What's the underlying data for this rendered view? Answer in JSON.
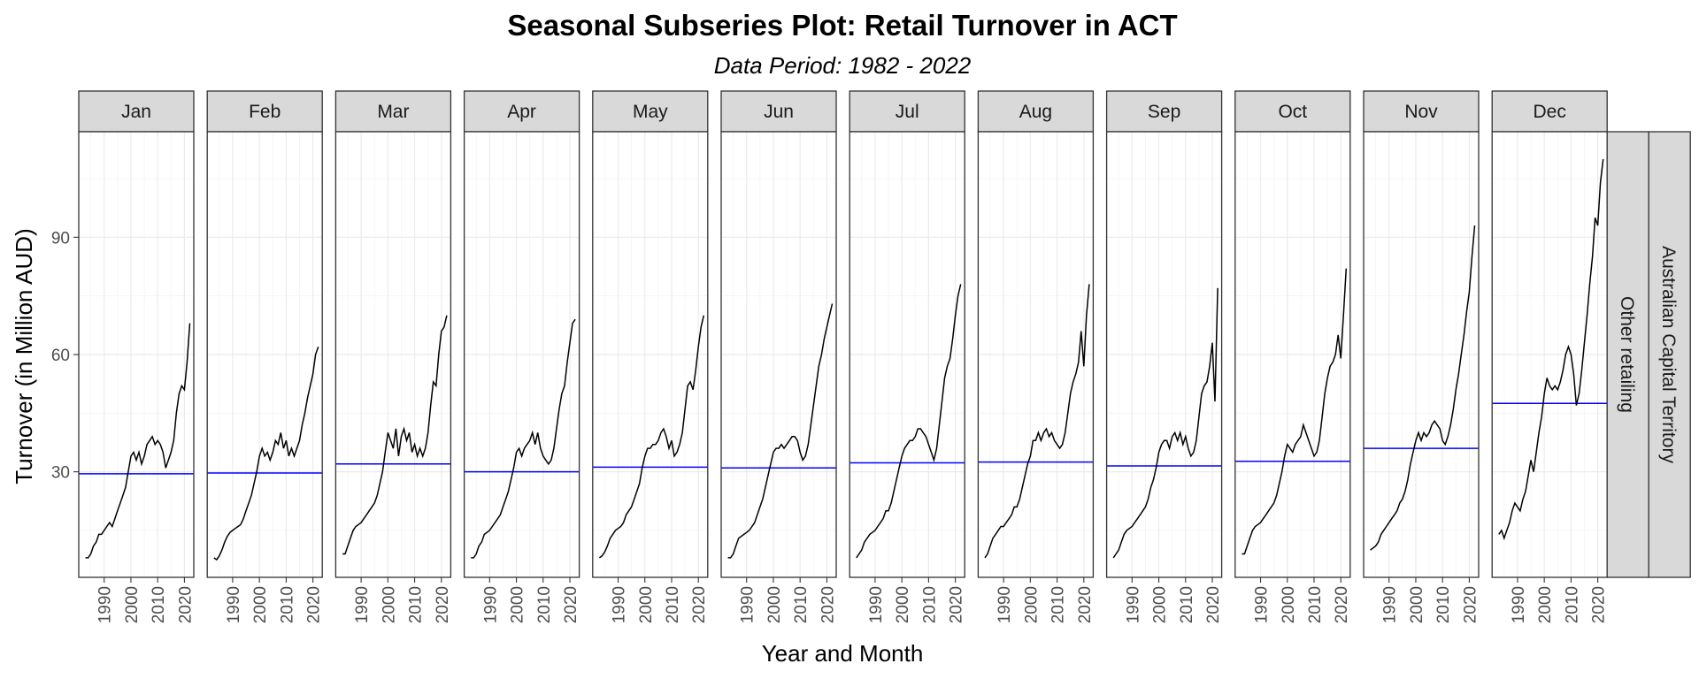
{
  "chart_data": {
    "type": "line",
    "title": "Seasonal Subseries Plot: Retail Turnover in ACT",
    "subtitle": "Data Period: 1982 - 2022",
    "xlabel": "Year and Month",
    "ylabel": "Turnover (in Million AUD)",
    "x_ticks": [
      1990,
      2000,
      2010,
      2020
    ],
    "y_ticks": [
      30,
      60,
      90
    ],
    "xlim": [
      1980.5,
      2023.5
    ],
    "ylim": [
      3,
      117
    ],
    "grid": true,
    "facet_row_labels": [
      "Other retailing",
      "Australian Capital Territory"
    ],
    "line_color": "#000000",
    "mean_line_color": "#0000ff",
    "panels": [
      {
        "month": "Jan",
        "mean": 29.5,
        "x": [
          1983,
          1984,
          1985,
          1986,
          1987,
          1988,
          1989,
          1990,
          1991,
          1992,
          1993,
          1994,
          1995,
          1996,
          1997,
          1998,
          1999,
          2000,
          2001,
          2002,
          2003,
          2004,
          2005,
          2006,
          2007,
          2008,
          2009,
          2010,
          2011,
          2012,
          2013,
          2014,
          2015,
          2016,
          2017,
          2018,
          2019,
          2020,
          2021,
          2022
        ],
        "y": [
          8,
          8,
          9,
          11,
          12,
          14,
          14,
          15,
          16,
          17,
          16,
          18,
          20,
          22,
          24,
          26,
          30,
          34,
          35,
          33,
          35,
          32,
          34,
          37,
          38,
          39,
          37,
          38,
          37,
          35,
          31,
          33,
          35,
          38,
          45,
          50,
          52,
          51,
          58,
          68
        ]
      },
      {
        "month": "Feb",
        "mean": 29.7,
        "x": [
          1983,
          1984,
          1985,
          1986,
          1987,
          1988,
          1989,
          1990,
          1991,
          1992,
          1993,
          1994,
          1995,
          1996,
          1997,
          1998,
          1999,
          2000,
          2001,
          2002,
          2003,
          2004,
          2005,
          2006,
          2007,
          2008,
          2009,
          2010,
          2011,
          2012,
          2013,
          2014,
          2015,
          2016,
          2017,
          2018,
          2019,
          2020,
          2021,
          2022
        ],
        "y": [
          8,
          7.5,
          8.5,
          10,
          12,
          13.5,
          14.5,
          15,
          15.5,
          16,
          16.5,
          18,
          20,
          22,
          24,
          27,
          30,
          34,
          36,
          34,
          35,
          33,
          35,
          38,
          37,
          40,
          36,
          38,
          34,
          36,
          34,
          36,
          38,
          42,
          45,
          49,
          52,
          55,
          60,
          62
        ]
      },
      {
        "month": "Mar",
        "mean": 32.0,
        "x": [
          1983,
          1984,
          1985,
          1986,
          1987,
          1988,
          1989,
          1990,
          1991,
          1992,
          1993,
          1994,
          1995,
          1996,
          1997,
          1998,
          1999,
          2000,
          2001,
          2002,
          2003,
          2004,
          2005,
          2006,
          2007,
          2008,
          2009,
          2010,
          2011,
          2012,
          2013,
          2014,
          2015,
          2016,
          2017,
          2018,
          2019,
          2020,
          2021,
          2022
        ],
        "y": [
          9,
          9,
          11,
          13,
          15,
          16,
          16.5,
          17,
          18,
          19,
          20,
          21,
          22,
          24,
          27,
          30,
          35,
          40,
          38,
          36,
          41,
          34,
          39,
          41,
          38,
          40,
          35,
          37,
          34,
          36,
          34,
          36,
          40,
          47,
          53,
          52,
          60,
          66,
          67,
          70
        ]
      },
      {
        "month": "Apr",
        "mean": 30.0,
        "x": [
          1983,
          1984,
          1985,
          1986,
          1987,
          1988,
          1989,
          1990,
          1991,
          1992,
          1993,
          1994,
          1995,
          1996,
          1997,
          1998,
          1999,
          2000,
          2001,
          2002,
          2003,
          2004,
          2005,
          2006,
          2007,
          2008,
          2009,
          2010,
          2011,
          2012,
          2013,
          2014,
          2015,
          2016,
          2017,
          2018,
          2019,
          2020,
          2021,
          2022
        ],
        "y": [
          8,
          8,
          9,
          11,
          12,
          14,
          14.5,
          15,
          16,
          17,
          18,
          19,
          21,
          23,
          25,
          28,
          31,
          35,
          36,
          34,
          36,
          37,
          38,
          40,
          37,
          40,
          36,
          34,
          33,
          32,
          33,
          36,
          41,
          46,
          50,
          52,
          58,
          63,
          68,
          69
        ]
      },
      {
        "month": "May",
        "mean": 31.2,
        "x": [
          1983,
          1984,
          1985,
          1986,
          1987,
          1988,
          1989,
          1990,
          1991,
          1992,
          1993,
          1994,
          1995,
          1996,
          1997,
          1998,
          1999,
          2000,
          2001,
          2002,
          2003,
          2004,
          2005,
          2006,
          2007,
          2008,
          2009,
          2010,
          2011,
          2012,
          2013,
          2014,
          2015,
          2016,
          2017,
          2018,
          2019,
          2020,
          2021,
          2022
        ],
        "y": [
          8,
          8.5,
          9.5,
          11,
          13,
          14,
          15,
          15.5,
          16,
          17,
          19,
          20,
          21,
          23,
          25,
          27,
          31,
          34,
          36,
          36,
          37,
          37,
          38,
          40,
          41,
          39,
          36,
          38,
          34,
          35,
          37,
          40,
          46,
          52,
          53,
          51,
          56,
          62,
          67,
          70
        ]
      },
      {
        "month": "Jun",
        "mean": 31.0,
        "x": [
          1983,
          1984,
          1985,
          1986,
          1987,
          1988,
          1989,
          1990,
          1991,
          1992,
          1993,
          1994,
          1995,
          1996,
          1997,
          1998,
          1999,
          2000,
          2001,
          2002,
          2003,
          2004,
          2005,
          2006,
          2007,
          2008,
          2009,
          2010,
          2011,
          2012,
          2013,
          2014,
          2015,
          2016,
          2017,
          2018,
          2019,
          2020,
          2021,
          2022
        ],
        "y": [
          8,
          8,
          9,
          11,
          13,
          13.5,
          14,
          14.5,
          15,
          16,
          17,
          19,
          21,
          23,
          26,
          29,
          32,
          35,
          36,
          36,
          37,
          36,
          37,
          38,
          39,
          39,
          38,
          35,
          33,
          34,
          37,
          42,
          47,
          52,
          57,
          60,
          64,
          67,
          70,
          73
        ]
      },
      {
        "month": "Jul",
        "mean": 32.3,
        "x": [
          1983,
          1984,
          1985,
          1986,
          1987,
          1988,
          1989,
          1990,
          1991,
          1992,
          1993,
          1994,
          1995,
          1996,
          1997,
          1998,
          1999,
          2000,
          2001,
          2002,
          2003,
          2004,
          2005,
          2006,
          2007,
          2008,
          2009,
          2010,
          2011,
          2012,
          2013,
          2014,
          2015,
          2016,
          2017,
          2018,
          2019,
          2020,
          2021,
          2022
        ],
        "y": [
          8,
          9,
          10,
          12,
          13,
          14,
          14.5,
          15,
          16,
          17,
          18,
          20,
          20,
          22,
          25,
          28,
          31,
          34,
          36,
          37,
          38,
          38,
          39,
          41,
          41,
          40,
          39,
          37,
          35,
          33,
          36,
          42,
          48,
          54,
          57,
          59,
          64,
          70,
          75,
          78
        ]
      },
      {
        "month": "Aug",
        "mean": 32.5,
        "x": [
          1983,
          1984,
          1985,
          1986,
          1987,
          1988,
          1989,
          1990,
          1991,
          1992,
          1993,
          1994,
          1995,
          1996,
          1997,
          1998,
          1999,
          2000,
          2001,
          2002,
          2003,
          2004,
          2005,
          2006,
          2007,
          2008,
          2009,
          2010,
          2011,
          2012,
          2013,
          2014,
          2015,
          2016,
          2017,
          2018,
          2019,
          2020,
          2021,
          2022
        ],
        "y": [
          8,
          9,
          11,
          13,
          14,
          15,
          16,
          16,
          17,
          18,
          19,
          21,
          21,
          23,
          26,
          29,
          32,
          34,
          38,
          38,
          40,
          38,
          40,
          41,
          39,
          40,
          38,
          37,
          36,
          37,
          40,
          45,
          50,
          53,
          55,
          58,
          66,
          57,
          70,
          78
        ]
      },
      {
        "month": "Sep",
        "mean": 31.5,
        "x": [
          1983,
          1984,
          1985,
          1986,
          1987,
          1988,
          1989,
          1990,
          1991,
          1992,
          1993,
          1994,
          1995,
          1996,
          1997,
          1998,
          1999,
          2000,
          2001,
          2002,
          2003,
          2004,
          2005,
          2006,
          2007,
          2008,
          2009,
          2010,
          2011,
          2012,
          2013,
          2014,
          2015,
          2016,
          2017,
          2018,
          2019,
          2020,
          2021,
          2022
        ],
        "y": [
          8,
          9,
          10,
          12,
          14,
          15,
          15.5,
          16,
          17,
          18,
          19,
          20,
          21,
          23,
          26,
          28,
          31,
          35,
          37,
          38,
          38,
          36,
          39,
          40,
          38,
          40,
          37,
          39,
          36,
          34,
          35,
          38,
          44,
          50,
          52,
          53,
          57,
          63,
          48,
          77
        ]
      },
      {
        "month": "Oct",
        "mean": 32.7,
        "x": [
          1983,
          1984,
          1985,
          1986,
          1987,
          1988,
          1989,
          1990,
          1991,
          1992,
          1993,
          1994,
          1995,
          1996,
          1997,
          1998,
          1999,
          2000,
          2001,
          2002,
          2003,
          2004,
          2005,
          2006,
          2007,
          2008,
          2009,
          2010,
          2011,
          2012,
          2013,
          2014,
          2015,
          2016,
          2017,
          2018,
          2019,
          2020,
          2021,
          2022
        ],
        "y": [
          9,
          9,
          11,
          13,
          15,
          16,
          16.5,
          17,
          18,
          19,
          20,
          21,
          22,
          24,
          27,
          30,
          34,
          37,
          36,
          35,
          37,
          38,
          39,
          42,
          40,
          38,
          36,
          34,
          35,
          38,
          44,
          50,
          54,
          57,
          58,
          60,
          65,
          59,
          70,
          82
        ]
      },
      {
        "month": "Nov",
        "mean": 36.0,
        "x": [
          1983,
          1984,
          1985,
          1986,
          1987,
          1988,
          1989,
          1990,
          1991,
          1992,
          1993,
          1994,
          1995,
          1996,
          1997,
          1998,
          1999,
          2000,
          2001,
          2002,
          2003,
          2004,
          2005,
          2006,
          2007,
          2008,
          2009,
          2010,
          2011,
          2012,
          2013,
          2014,
          2015,
          2016,
          2017,
          2018,
          2019,
          2020,
          2021,
          2022
        ],
        "y": [
          10,
          10.5,
          11,
          12,
          14,
          15,
          16,
          17,
          18,
          19,
          20,
          22,
          23,
          25,
          28,
          32,
          35,
          38,
          40,
          38,
          40,
          39,
          40,
          42,
          43,
          42,
          41,
          38,
          37,
          39,
          42,
          46,
          51,
          55,
          60,
          65,
          71,
          76,
          85,
          93
        ]
      },
      {
        "month": "Dec",
        "mean": 47.5,
        "x": [
          1983,
          1984,
          1985,
          1986,
          1987,
          1988,
          1989,
          1990,
          1991,
          1992,
          1993,
          1994,
          1995,
          1996,
          1997,
          1998,
          1999,
          2000,
          2001,
          2002,
          2003,
          2004,
          2005,
          2006,
          2007,
          2008,
          2009,
          2010,
          2011,
          2012,
          2013,
          2014,
          2015,
          2016,
          2017,
          2018,
          2019,
          2020,
          2021,
          2022
        ],
        "y": [
          14,
          15,
          13,
          15,
          17,
          20,
          22,
          21,
          20,
          23,
          25,
          29,
          33,
          30,
          35,
          40,
          44,
          50,
          54,
          52,
          51,
          52,
          51,
          53,
          56,
          60,
          62,
          60,
          55,
          47,
          50,
          56,
          63,
          70,
          78,
          85,
          95,
          93,
          104,
          110
        ]
      }
    ]
  }
}
